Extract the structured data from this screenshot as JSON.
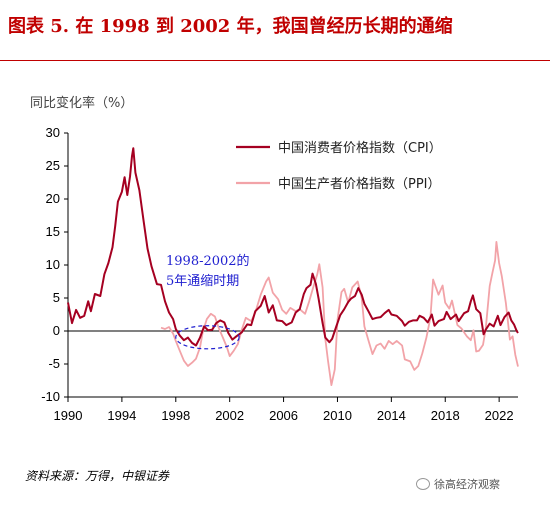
{
  "title": "图表 5. 在 1998 到 2002 年，我国曾经历长期的通缩",
  "source": "资料来源：万得，中银证券",
  "watermark": "徐高经济观察",
  "colors": {
    "cpi": "#a50021",
    "ppi": "#f2a3a8",
    "title": "#c00000",
    "annotation": "#2020d0"
  },
  "chart_data": {
    "type": "line",
    "ylabel": "同比变化率（%）",
    "ylim": [
      -10,
      30
    ],
    "xlim": [
      1990,
      2023.4
    ],
    "x_ticks": [
      "1990",
      "1994",
      "1998",
      "2002",
      "2006",
      "2010",
      "2014",
      "2018",
      "2022"
    ],
    "y_ticks": [
      "30",
      "25",
      "20",
      "15",
      "10",
      "5",
      "0",
      "-5",
      "-10"
    ],
    "grid": false,
    "legend": "top-right",
    "annotation": {
      "lines": [
        "1998-2002的",
        "5年通缩时期"
      ],
      "x_range": [
        1998,
        2002.7
      ],
      "y_range": [
        -2.7,
        0.8
      ]
    },
    "series": [
      {
        "name": "中国消费者价格指数（CPI）",
        "points": [
          [
            1990.0,
            4.3
          ],
          [
            1990.3,
            1.2
          ],
          [
            1990.6,
            3.2
          ],
          [
            1990.9,
            2.0
          ],
          [
            1991.2,
            2.3
          ],
          [
            1991.5,
            4.5
          ],
          [
            1991.7,
            3.0
          ],
          [
            1992.0,
            5.6
          ],
          [
            1992.4,
            5.3
          ],
          [
            1992.7,
            8.6
          ],
          [
            1993.0,
            10.3
          ],
          [
            1993.3,
            12.7
          ],
          [
            1993.5,
            15.9
          ],
          [
            1993.7,
            19.6
          ],
          [
            1994.0,
            21.1
          ],
          [
            1994.2,
            23.3
          ],
          [
            1994.4,
            20.6
          ],
          [
            1994.6,
            23.4
          ],
          [
            1994.75,
            26.5
          ],
          [
            1994.85,
            27.7
          ],
          [
            1995.0,
            24.0
          ],
          [
            1995.3,
            21.3
          ],
          [
            1995.6,
            16.9
          ],
          [
            1995.9,
            12.5
          ],
          [
            1996.2,
            9.8
          ],
          [
            1996.6,
            7.1
          ],
          [
            1996.9,
            7.0
          ],
          [
            1997.2,
            4.5
          ],
          [
            1997.5,
            2.8
          ],
          [
            1997.8,
            1.8
          ],
          [
            1998.0,
            0.3
          ],
          [
            1998.3,
            -0.7
          ],
          [
            1998.6,
            -1.4
          ],
          [
            1998.9,
            -1.0
          ],
          [
            1999.2,
            -1.8
          ],
          [
            1999.5,
            -2.2
          ],
          [
            1999.8,
            -1.0
          ],
          [
            2000.1,
            0.7
          ],
          [
            2000.4,
            0.1
          ],
          [
            2000.7,
            0.2
          ],
          [
            2001.0,
            1.2
          ],
          [
            2001.3,
            1.6
          ],
          [
            2001.6,
            1.3
          ],
          [
            2001.9,
            -0.3
          ],
          [
            2002.2,
            -1.3
          ],
          [
            2002.5,
            -0.8
          ],
          [
            2002.9,
            -0.2
          ],
          [
            2003.3,
            1.0
          ],
          [
            2003.6,
            0.9
          ],
          [
            2003.9,
            3.0
          ],
          [
            2004.3,
            3.8
          ],
          [
            2004.6,
            5.3
          ],
          [
            2004.9,
            2.8
          ],
          [
            2005.2,
            3.9
          ],
          [
            2005.5,
            1.6
          ],
          [
            2005.9,
            1.5
          ],
          [
            2006.2,
            0.9
          ],
          [
            2006.6,
            1.3
          ],
          [
            2006.9,
            2.8
          ],
          [
            2007.2,
            3.3
          ],
          [
            2007.5,
            5.6
          ],
          [
            2007.7,
            6.5
          ],
          [
            2008.0,
            7.0
          ],
          [
            2008.15,
            8.7
          ],
          [
            2008.4,
            7.1
          ],
          [
            2008.6,
            4.9
          ],
          [
            2008.9,
            1.2
          ],
          [
            2009.1,
            -1.0
          ],
          [
            2009.4,
            -1.7
          ],
          [
            2009.6,
            -1.2
          ],
          [
            2009.9,
            0.6
          ],
          [
            2010.2,
            2.4
          ],
          [
            2010.5,
            3.3
          ],
          [
            2010.8,
            4.4
          ],
          [
            2011.0,
            4.9
          ],
          [
            2011.3,
            5.3
          ],
          [
            2011.55,
            6.5
          ],
          [
            2011.8,
            5.5
          ],
          [
            2012.0,
            4.1
          ],
          [
            2012.3,
            3.0
          ],
          [
            2012.6,
            1.8
          ],
          [
            2012.9,
            2.0
          ],
          [
            2013.2,
            2.1
          ],
          [
            2013.5,
            2.7
          ],
          [
            2013.8,
            3.2
          ],
          [
            2014.0,
            2.5
          ],
          [
            2014.4,
            2.3
          ],
          [
            2014.8,
            1.5
          ],
          [
            2015.0,
            0.8
          ],
          [
            2015.3,
            1.4
          ],
          [
            2015.6,
            1.6
          ],
          [
            2015.9,
            1.6
          ],
          [
            2016.1,
            2.3
          ],
          [
            2016.4,
            2.0
          ],
          [
            2016.7,
            1.3
          ],
          [
            2017.0,
            2.5
          ],
          [
            2017.2,
            0.8
          ],
          [
            2017.5,
            1.5
          ],
          [
            2017.9,
            1.8
          ],
          [
            2018.1,
            2.9
          ],
          [
            2018.4,
            1.8
          ],
          [
            2018.8,
            2.5
          ],
          [
            2019.0,
            1.5
          ],
          [
            2019.4,
            2.7
          ],
          [
            2019.7,
            3.0
          ],
          [
            2019.9,
            4.5
          ],
          [
            2020.05,
            5.4
          ],
          [
            2020.3,
            3.3
          ],
          [
            2020.6,
            2.7
          ],
          [
            2020.85,
            -0.5
          ],
          [
            2021.0,
            0.2
          ],
          [
            2021.3,
            1.1
          ],
          [
            2021.6,
            0.7
          ],
          [
            2021.9,
            2.3
          ],
          [
            2022.1,
            0.9
          ],
          [
            2022.4,
            2.1
          ],
          [
            2022.7,
            2.8
          ],
          [
            2022.9,
            1.6
          ],
          [
            2023.1,
            1.0
          ],
          [
            2023.3,
            0.0
          ],
          [
            2023.4,
            -0.3
          ]
        ]
      },
      {
        "name": "中国生产者价格指数（PPI）",
        "points": [
          [
            1996.9,
            0.5
          ],
          [
            1997.2,
            0.3
          ],
          [
            1997.5,
            0.6
          ],
          [
            1997.8,
            -0.4
          ],
          [
            1998.0,
            -1.5
          ],
          [
            1998.3,
            -3.0
          ],
          [
            1998.6,
            -4.5
          ],
          [
            1998.9,
            -5.3
          ],
          [
            1999.2,
            -4.8
          ],
          [
            1999.5,
            -4.2
          ],
          [
            1999.8,
            -2.5
          ],
          [
            2000.0,
            -0.2
          ],
          [
            2000.3,
            1.8
          ],
          [
            2000.6,
            2.6
          ],
          [
            2000.9,
            2.2
          ],
          [
            2001.2,
            0.4
          ],
          [
            2001.5,
            -1.0
          ],
          [
            2001.8,
            -2.5
          ],
          [
            2002.0,
            -3.8
          ],
          [
            2002.3,
            -3.0
          ],
          [
            2002.6,
            -2.0
          ],
          [
            2002.9,
            0.2
          ],
          [
            2003.2,
            2.0
          ],
          [
            2003.6,
            1.5
          ],
          [
            2003.9,
            2.8
          ],
          [
            2004.3,
            5.5
          ],
          [
            2004.7,
            7.5
          ],
          [
            2004.9,
            8.1
          ],
          [
            2005.2,
            5.8
          ],
          [
            2005.6,
            4.8
          ],
          [
            2005.9,
            3.2
          ],
          [
            2006.2,
            2.6
          ],
          [
            2006.5,
            3.5
          ],
          [
            2006.9,
            3.0
          ],
          [
            2007.2,
            3.3
          ],
          [
            2007.6,
            2.6
          ],
          [
            2007.9,
            4.5
          ],
          [
            2008.2,
            6.6
          ],
          [
            2008.5,
            8.6
          ],
          [
            2008.65,
            10.1
          ],
          [
            2008.9,
            6.6
          ],
          [
            2009.1,
            -1.2
          ],
          [
            2009.3,
            -4.5
          ],
          [
            2009.55,
            -8.2
          ],
          [
            2009.8,
            -5.8
          ],
          [
            2010.0,
            1.7
          ],
          [
            2010.3,
            5.9
          ],
          [
            2010.5,
            6.4
          ],
          [
            2010.8,
            4.3
          ],
          [
            2011.1,
            6.6
          ],
          [
            2011.5,
            7.5
          ],
          [
            2011.8,
            5.0
          ],
          [
            2012.0,
            0.7
          ],
          [
            2012.3,
            -1.4
          ],
          [
            2012.6,
            -3.5
          ],
          [
            2012.9,
            -2.2
          ],
          [
            2013.2,
            -1.9
          ],
          [
            2013.5,
            -2.7
          ],
          [
            2013.8,
            -1.5
          ],
          [
            2014.1,
            -2.0
          ],
          [
            2014.4,
            -1.5
          ],
          [
            2014.8,
            -2.2
          ],
          [
            2015.0,
            -4.3
          ],
          [
            2015.4,
            -4.6
          ],
          [
            2015.7,
            -5.9
          ],
          [
            2016.0,
            -5.3
          ],
          [
            2016.3,
            -3.4
          ],
          [
            2016.6,
            -1.0
          ],
          [
            2016.9,
            2.0
          ],
          [
            2017.1,
            7.8
          ],
          [
            2017.5,
            5.5
          ],
          [
            2017.8,
            6.9
          ],
          [
            2018.0,
            4.3
          ],
          [
            2018.3,
            3.4
          ],
          [
            2018.5,
            4.6
          ],
          [
            2018.9,
            0.9
          ],
          [
            2019.2,
            0.4
          ],
          [
            2019.6,
            -0.8
          ],
          [
            2019.9,
            -1.4
          ],
          [
            2020.1,
            0.1
          ],
          [
            2020.3,
            -3.1
          ],
          [
            2020.5,
            -3.0
          ],
          [
            2020.8,
            -2.1
          ],
          [
            2021.0,
            0.3
          ],
          [
            2021.3,
            6.8
          ],
          [
            2021.5,
            8.8
          ],
          [
            2021.7,
            10.7
          ],
          [
            2021.8,
            13.5
          ],
          [
            2022.0,
            10.3
          ],
          [
            2022.2,
            8.3
          ],
          [
            2022.5,
            4.2
          ],
          [
            2022.8,
            -1.3
          ],
          [
            2023.0,
            -0.8
          ],
          [
            2023.2,
            -3.6
          ],
          [
            2023.4,
            -5.4
          ]
        ]
      }
    ]
  }
}
